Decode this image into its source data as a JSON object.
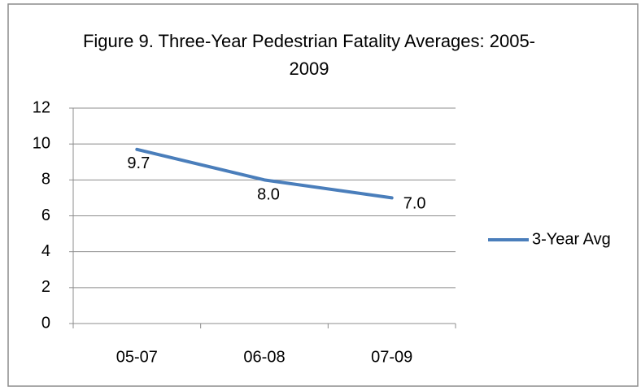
{
  "chart_data": {
    "type": "line",
    "title": "Figure 9.  Three-Year Pedestrian Fatality Averages: 2005-2009",
    "categories": [
      "05-07",
      "06-08",
      "07-09"
    ],
    "series": [
      {
        "name": "3-Year Avg",
        "color": "#4a7ebb",
        "values": [
          9.7,
          8.0,
          7.0
        ],
        "value_labels": [
          "9.7",
          "8.0",
          "7.0"
        ]
      }
    ],
    "ylim": [
      0,
      12
    ],
    "yticks": [
      0,
      2,
      4,
      6,
      8,
      10,
      12
    ],
    "grid": true,
    "legend": "right"
  }
}
